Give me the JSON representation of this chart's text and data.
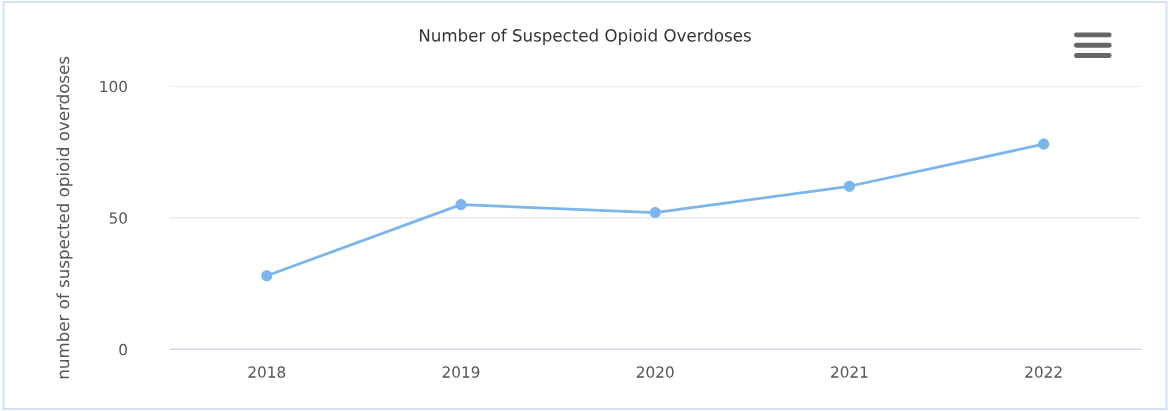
{
  "chart_data": {
    "type": "line",
    "title": "Number of Suspected Opioid Overdoses",
    "ylabel": "number of suspected opioid overdoses",
    "categories": [
      "2018",
      "2019",
      "2020",
      "2021",
      "2022"
    ],
    "series": [
      {
        "color": "#7cb5ec",
        "values": [
          28,
          55,
          52,
          62,
          78
        ]
      }
    ],
    "ylim": [
      0,
      100
    ],
    "yticks": [
      0,
      50,
      100
    ],
    "grid": "y",
    "marker": "circle",
    "line_style": "solid"
  }
}
